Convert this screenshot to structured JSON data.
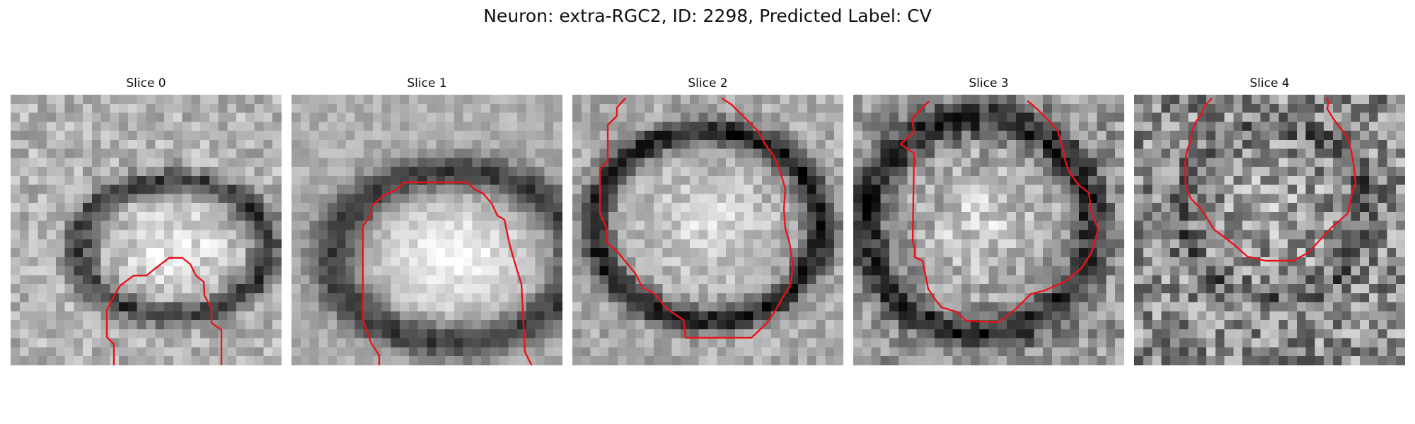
{
  "figure": {
    "title": "Neuron: extra-RGC2, ID: 2298, Predicted Label: CV"
  },
  "slices": [
    {
      "title": "Slice 0"
    },
    {
      "title": "Slice 1"
    },
    {
      "title": "Slice 2"
    },
    {
      "title": "Slice 3"
    },
    {
      "title": "Slice 4"
    }
  ],
  "colors": {
    "contour": "#e8141b",
    "background": "#ffffff"
  },
  "image_style": {
    "colormap": "grayscale",
    "pixelated": true
  }
}
